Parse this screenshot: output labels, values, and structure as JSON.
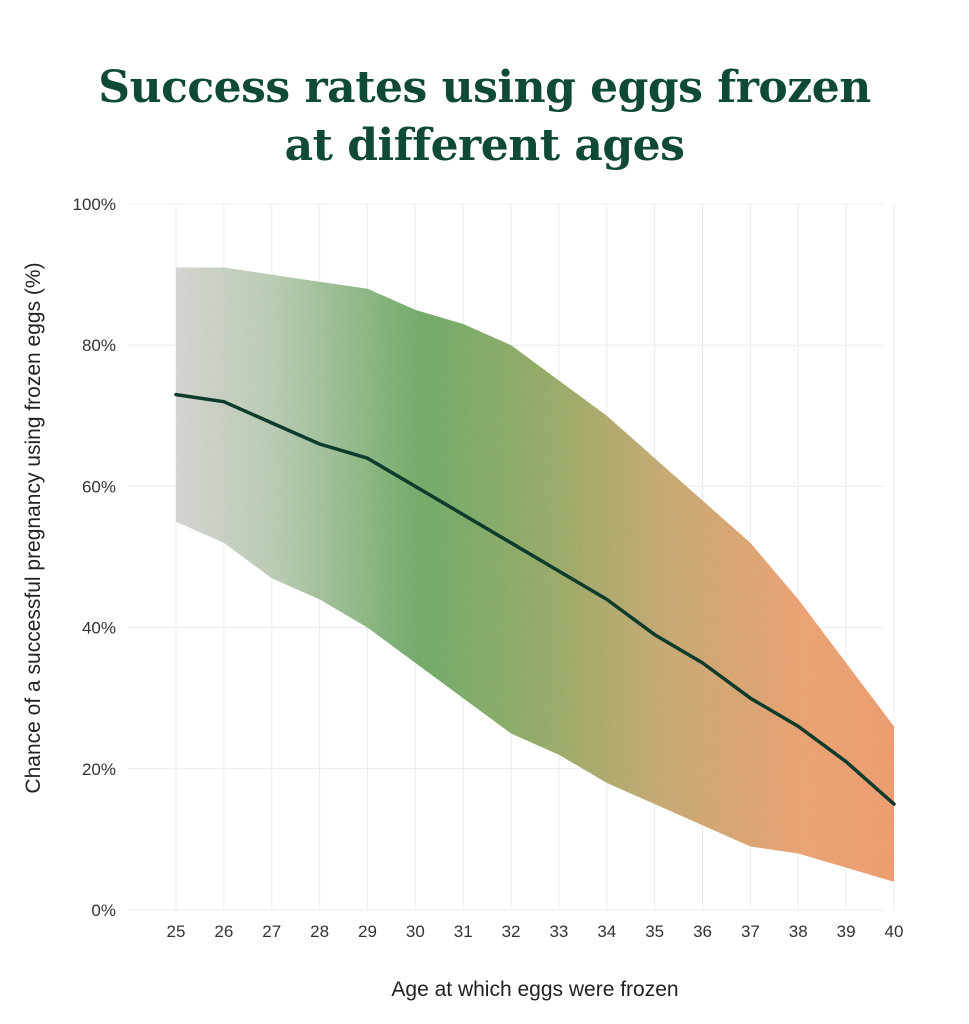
{
  "chart_data": {
    "type": "area",
    "title_lines": [
      "Success rates using eggs frozen",
      "at different ages"
    ],
    "xlabel": "Age at which eggs were frozen",
    "ylabel": "Chance of a successful pregnancy using frozen eggs (%)",
    "x": [
      25,
      26,
      27,
      28,
      29,
      30,
      31,
      32,
      33,
      34,
      35,
      36,
      37,
      38,
      39,
      40
    ],
    "x_tick_labels": [
      "25",
      "26",
      "27",
      "28",
      "29",
      "30",
      "31",
      "32",
      "33",
      "34",
      "35",
      "36",
      "37",
      "38",
      "39",
      "40"
    ],
    "ylim": [
      0,
      100
    ],
    "y_ticks": [
      0,
      20,
      40,
      60,
      80,
      100
    ],
    "y_tick_labels": [
      "0%",
      "20%",
      "40%",
      "60%",
      "80%",
      "100%"
    ],
    "series": [
      {
        "name": "upper bound",
        "values": [
          91,
          91,
          90,
          89,
          88,
          85,
          83,
          80,
          75,
          70,
          64,
          58,
          52,
          44,
          35,
          26
        ]
      },
      {
        "name": "lower bound",
        "values": [
          55,
          52,
          47,
          44,
          40,
          35,
          30,
          25,
          22,
          18,
          15,
          12,
          9,
          8,
          6,
          4
        ]
      },
      {
        "name": "average",
        "values": [
          73,
          72,
          69,
          66,
          64,
          60,
          56,
          52,
          48,
          44,
          39,
          35,
          30,
          26,
          21,
          15
        ]
      }
    ],
    "grid": true,
    "colors": {
      "title": "#0f4a36",
      "line": "#0d3b2c",
      "grid": "#ececec",
      "band_gradient": [
        "#d6d6d2",
        "#b9ccb2",
        "#6aaa5f",
        "#8faa5c",
        "#c8a86c",
        "#eea06a",
        "#f09a68"
      ]
    }
  }
}
